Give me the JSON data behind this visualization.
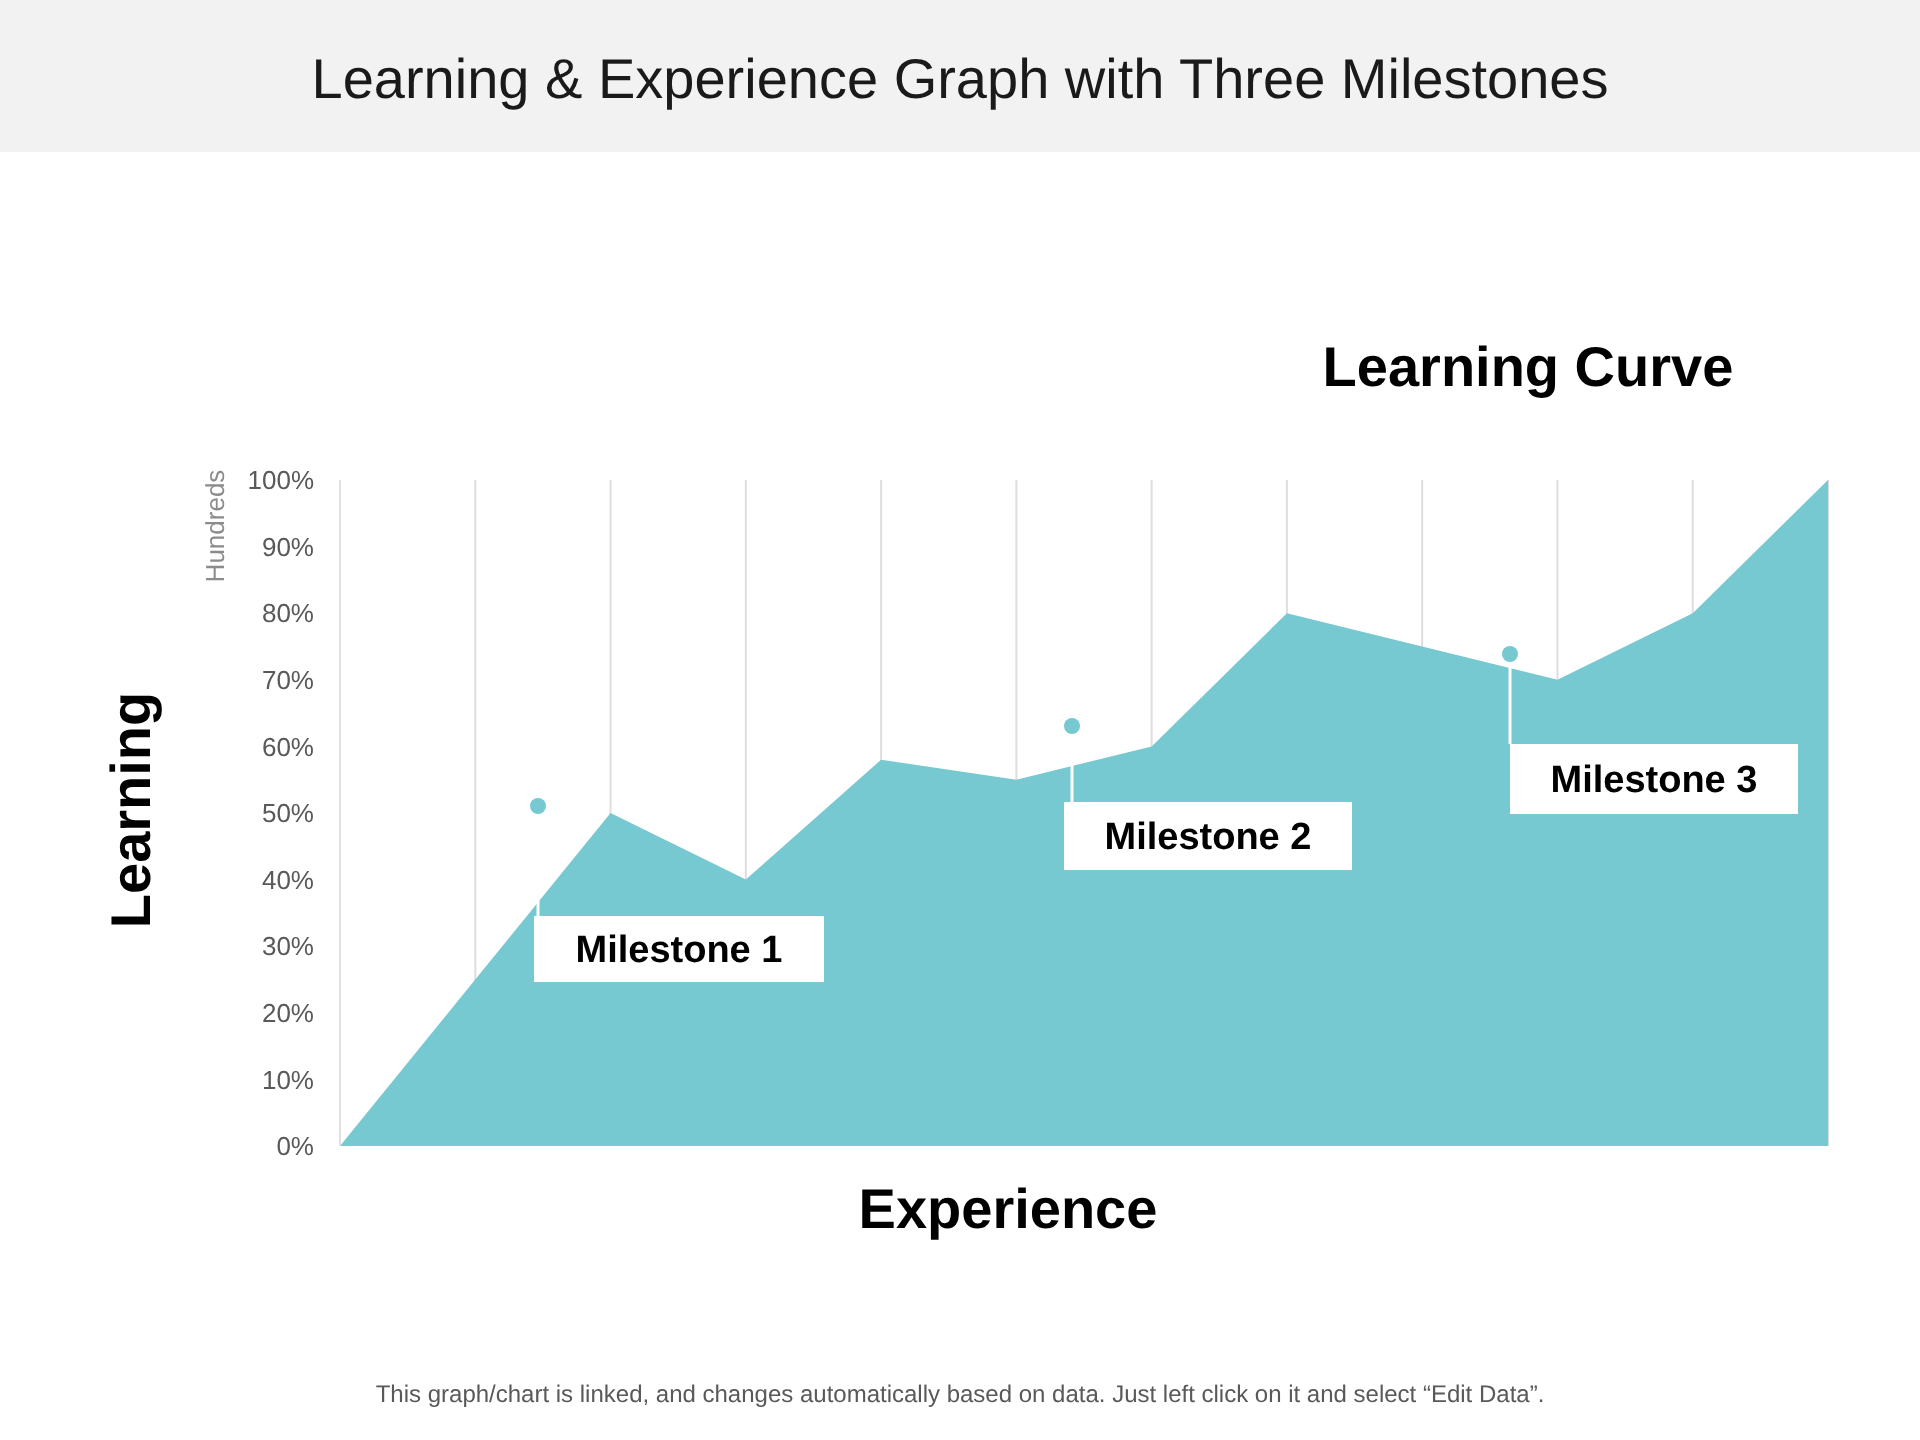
{
  "chart_data": {
    "type": "area",
    "title": "Learning & Experience Graph with Three Milestones",
    "subtitle": "Learning Curve",
    "xlabel": "Experience",
    "ylabel": "Learning",
    "annotations": [
      "Hundreds",
      "Milestone 1",
      "Milestone 2",
      "Milestone 3",
      "This graph/chart is linked, and changes automatically based on data. Just left click on it and select “Edit Data”."
    ],
    "categories": [
      null,
      null,
      null,
      null,
      null,
      null,
      null,
      null,
      null,
      null,
      null,
      null
    ],
    "values": [
      0,
      25,
      50,
      40,
      58,
      55,
      60,
      80,
      75,
      70,
      80,
      100
    ],
    "color": "#76c8d1",
    "ylim": [
      0,
      100
    ],
    "yticks": [
      {
        "value": 0,
        "label": "0%"
      },
      {
        "value": 10,
        "label": "10%"
      },
      {
        "value": 20,
        "label": "20%"
      },
      {
        "value": 30,
        "label": "30%"
      },
      {
        "value": 40,
        "label": "40%"
      },
      {
        "value": 50,
        "label": "50%"
      },
      {
        "value": 60,
        "label": "60%"
      },
      {
        "value": 70,
        "label": "70%"
      },
      {
        "value": 80,
        "label": "80%"
      },
      {
        "value": 90,
        "label": "90%"
      },
      {
        "value": 100,
        "label": "100%"
      }
    ],
    "grid": "x",
    "tick_labels": "y"
  }
}
